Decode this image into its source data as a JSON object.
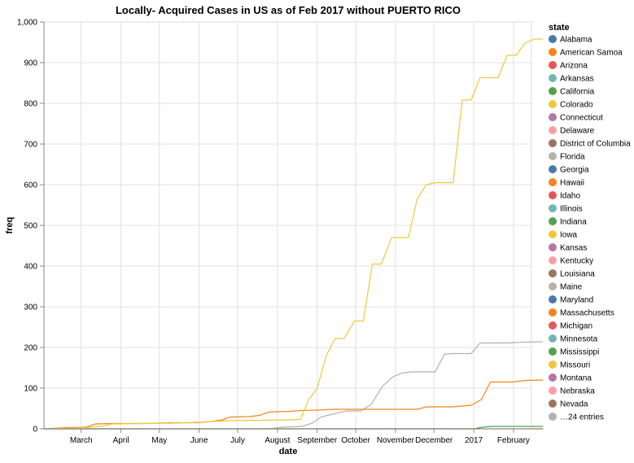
{
  "chart_data": {
    "type": "line",
    "title": "Locally- Acquired Cases in US as of Feb 2017 without PUERTO RICO",
    "xlabel": "date",
    "ylabel": "freq",
    "x_ticks": [
      "March",
      "April",
      "May",
      "June",
      "July",
      "August",
      "September",
      "October",
      "November",
      "December",
      "2017",
      "February"
    ],
    "x_range": [
      "2016-02-01",
      "2017-02-15"
    ],
    "y_ticks": [
      "0",
      "100",
      "200",
      "300",
      "400",
      "500",
      "600",
      "700",
      "800",
      "900",
      "1,000"
    ],
    "ylim": [
      0,
      1000
    ],
    "grid": true,
    "legend": {
      "title": "state",
      "placement": "right",
      "entries": [
        {
          "label": "Alabama",
          "color": "#4c78a8"
        },
        {
          "label": "American Samoa",
          "color": "#f58518"
        },
        {
          "label": "Arizona",
          "color": "#e45756"
        },
        {
          "label": "Arkansas",
          "color": "#72b7b2"
        },
        {
          "label": "California",
          "color": "#54a24b"
        },
        {
          "label": "Colorado",
          "color": "#eeca3b"
        },
        {
          "label": "Connecticut",
          "color": "#b279a2"
        },
        {
          "label": "Delaware",
          "color": "#ff9da6"
        },
        {
          "label": "District of Columbia",
          "color": "#9d755d"
        },
        {
          "label": "Florida",
          "color": "#bab0ac"
        },
        {
          "label": "Georgia",
          "color": "#4c78a8"
        },
        {
          "label": "Hawaii",
          "color": "#f58518"
        },
        {
          "label": "Idaho",
          "color": "#e45756"
        },
        {
          "label": "Illinois",
          "color": "#72b7b2"
        },
        {
          "label": "Indiana",
          "color": "#54a24b"
        },
        {
          "label": "Iowa",
          "color": "#eeca3b"
        },
        {
          "label": "Kansas",
          "color": "#b279a2"
        },
        {
          "label": "Kentucky",
          "color": "#ff9da6"
        },
        {
          "label": "Louisiana",
          "color": "#9d755d"
        },
        {
          "label": "Maine",
          "color": "#bab0ac"
        },
        {
          "label": "Maryland",
          "color": "#4c78a8"
        },
        {
          "label": "Massachusetts",
          "color": "#f58518"
        },
        {
          "label": "Michigan",
          "color": "#e45756"
        },
        {
          "label": "Minnesota",
          "color": "#72b7b2"
        },
        {
          "label": "Mississippi",
          "color": "#54a24b"
        },
        {
          "label": "Missouri",
          "color": "#eeca3b"
        },
        {
          "label": "Montana",
          "color": "#b279a2"
        },
        {
          "label": "Nebraska",
          "color": "#ff9da6"
        },
        {
          "label": "Nevada",
          "color": "#9d755d"
        },
        {
          "label": "…24 entries",
          "color": "#bab0ac"
        }
      ]
    },
    "series": [
      {
        "color": "#eeca3b",
        "points": [
          [
            "2016-02-01",
            0
          ],
          [
            "2016-02-22",
            1
          ],
          [
            "2016-03-05",
            3
          ],
          [
            "2016-03-18",
            7
          ],
          [
            "2016-03-25",
            12
          ],
          [
            "2016-04-15",
            13
          ],
          [
            "2016-05-10",
            14
          ],
          [
            "2016-05-25",
            15
          ],
          [
            "2016-06-10",
            18
          ],
          [
            "2016-06-25",
            20
          ],
          [
            "2016-07-20",
            21
          ],
          [
            "2016-08-10",
            22
          ],
          [
            "2016-08-19",
            23
          ],
          [
            "2016-08-25",
            70
          ],
          [
            "2016-09-01",
            100
          ],
          [
            "2016-09-08",
            180
          ],
          [
            "2016-09-15",
            222
          ],
          [
            "2016-09-22",
            222
          ],
          [
            "2016-09-30",
            265
          ],
          [
            "2016-10-07",
            265
          ],
          [
            "2016-10-14",
            405
          ],
          [
            "2016-10-21",
            405
          ],
          [
            "2016-10-29",
            470
          ],
          [
            "2016-11-11",
            470
          ],
          [
            "2016-11-18",
            565
          ],
          [
            "2016-11-25",
            600
          ],
          [
            "2016-12-02",
            605
          ],
          [
            "2016-12-16",
            605
          ],
          [
            "2016-12-23",
            808
          ],
          [
            "2016-12-30",
            808
          ],
          [
            "2017-01-06",
            863
          ],
          [
            "2017-01-20",
            863
          ],
          [
            "2017-01-27",
            918
          ],
          [
            "2017-02-03",
            918
          ],
          [
            "2017-02-10",
            948
          ],
          [
            "2017-02-17",
            958
          ],
          [
            "2017-02-24",
            958
          ]
        ]
      },
      {
        "color": "#f58518",
        "points": [
          [
            "2016-02-01",
            0
          ],
          [
            "2016-02-20",
            3
          ],
          [
            "2016-03-05",
            4
          ],
          [
            "2016-03-12",
            12
          ],
          [
            "2016-03-25",
            13
          ],
          [
            "2016-04-20",
            13
          ],
          [
            "2016-05-10",
            15
          ],
          [
            "2016-05-30",
            15
          ],
          [
            "2016-06-10",
            18
          ],
          [
            "2016-06-19",
            22
          ],
          [
            "2016-06-25",
            29
          ],
          [
            "2016-07-10",
            30
          ],
          [
            "2016-07-18",
            33
          ],
          [
            "2016-07-25",
            41
          ],
          [
            "2016-08-01",
            42
          ],
          [
            "2016-08-10",
            43
          ],
          [
            "2016-08-20",
            45
          ],
          [
            "2016-09-01",
            46
          ],
          [
            "2016-09-15",
            48
          ],
          [
            "2016-10-05",
            48
          ],
          [
            "2016-11-18",
            48
          ],
          [
            "2016-11-25",
            54
          ],
          [
            "2016-12-16",
            54
          ],
          [
            "2016-12-30",
            58
          ],
          [
            "2017-01-07",
            72
          ],
          [
            "2017-01-14",
            115
          ],
          [
            "2017-01-31",
            115
          ],
          [
            "2017-02-10",
            119
          ],
          [
            "2017-02-24",
            120
          ]
        ]
      },
      {
        "color": "#bab0ac",
        "points": [
          [
            "2016-02-01",
            0
          ],
          [
            "2016-07-25",
            0
          ],
          [
            "2016-08-05",
            4
          ],
          [
            "2016-08-20",
            6
          ],
          [
            "2016-08-28",
            14
          ],
          [
            "2016-09-04",
            29
          ],
          [
            "2016-09-18",
            40
          ],
          [
            "2016-09-24",
            44
          ],
          [
            "2016-10-05",
            44
          ],
          [
            "2016-10-13",
            60
          ],
          [
            "2016-10-22",
            105
          ],
          [
            "2016-10-30",
            128
          ],
          [
            "2016-11-06",
            137
          ],
          [
            "2016-11-13",
            140
          ],
          [
            "2016-12-02",
            140
          ],
          [
            "2016-12-09",
            183
          ],
          [
            "2016-12-16",
            185
          ],
          [
            "2016-12-30",
            185
          ],
          [
            "2017-01-06",
            211
          ],
          [
            "2017-01-27",
            211
          ],
          [
            "2017-02-10",
            213
          ],
          [
            "2017-02-24",
            214
          ]
        ]
      },
      {
        "color": "#54a24b",
        "points": [
          [
            "2016-02-01",
            0
          ],
          [
            "2017-01-01",
            0
          ],
          [
            "2017-01-08",
            4
          ],
          [
            "2017-01-15",
            6
          ],
          [
            "2017-02-24",
            6
          ]
        ]
      },
      {
        "color": "#9d755d",
        "points": [
          [
            "2016-02-01",
            0
          ],
          [
            "2017-02-24",
            0
          ]
        ]
      }
    ]
  }
}
